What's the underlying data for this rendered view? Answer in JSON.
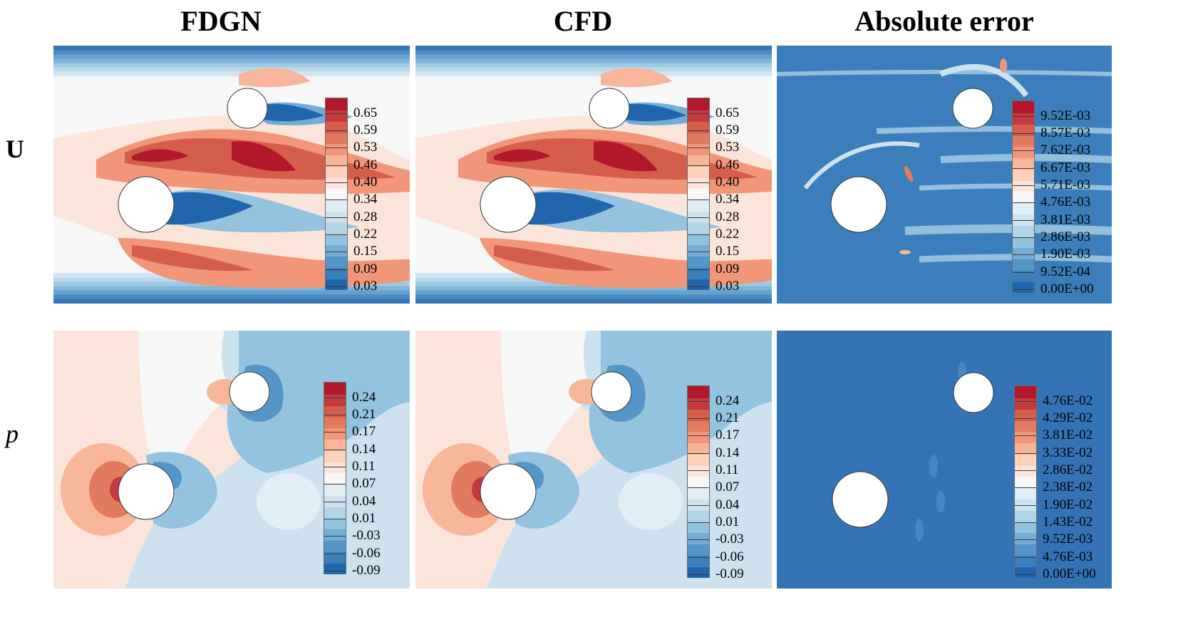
{
  "column_titles": [
    "FDGN",
    "CFD",
    "Absolute error"
  ],
  "row_labels": [
    "U",
    "p"
  ],
  "chart_data": [
    {
      "type": "heatmap",
      "title": "FDGN",
      "field": "U",
      "description": "Velocity magnitude contour around two cylinders (large lower-left, small upper-right) with wakes",
      "colorbar": {
        "colormap": "RdBu_r",
        "ticks": [
          "0.65",
          "0.59",
          "0.53",
          "0.46",
          "0.40",
          "0.34",
          "0.28",
          "0.22",
          "0.15",
          "0.09",
          "0.03"
        ],
        "range": [
          0.0,
          0.71
        ]
      }
    },
    {
      "type": "heatmap",
      "title": "CFD",
      "field": "U",
      "description": "Reference CFD velocity magnitude contour",
      "colorbar": {
        "colormap": "RdBu_r",
        "ticks": [
          "0.65",
          "0.59",
          "0.53",
          "0.46",
          "0.40",
          "0.34",
          "0.28",
          "0.22",
          "0.15",
          "0.09",
          "0.03"
        ],
        "range": [
          0.0,
          0.71
        ]
      }
    },
    {
      "type": "heatmap",
      "title": "Absolute error",
      "field": "U",
      "description": "Absolute error between FDGN and CFD velocity",
      "colorbar": {
        "colormap": "RdBu_r",
        "ticks": [
          "9.52E-03",
          "8.57E-03",
          "7.62E-03",
          "6.67E-03",
          "5.71E-03",
          "4.76E-03",
          "3.81E-03",
          "2.86E-03",
          "1.90E-03",
          "9.52E-04",
          "0.00E+00"
        ],
        "range": [
          0.0,
          0.0105
        ]
      }
    },
    {
      "type": "heatmap",
      "title": "FDGN",
      "field": "p",
      "description": "Pressure contour with stagnation high-pressure upstream of cylinders",
      "colorbar": {
        "colormap": "RdBu_r",
        "ticks": [
          "0.24",
          "0.21",
          "0.17",
          "0.14",
          "0.11",
          "0.07",
          "0.04",
          "0.01",
          "-0.03",
          "-0.06",
          "-0.09"
        ],
        "range": [
          -0.11,
          0.27
        ]
      }
    },
    {
      "type": "heatmap",
      "title": "CFD",
      "field": "p",
      "description": "Reference CFD pressure contour",
      "colorbar": {
        "colormap": "RdBu_r",
        "ticks": [
          "0.24",
          "0.21",
          "0.17",
          "0.14",
          "0.11",
          "0.07",
          "0.04",
          "0.01",
          "-0.03",
          "-0.06",
          "-0.09"
        ],
        "range": [
          -0.11,
          0.27
        ]
      }
    },
    {
      "type": "heatmap",
      "title": "Absolute error",
      "field": "p",
      "description": "Absolute pressure error, nearly uniform low",
      "colorbar": {
        "colormap": "RdBu_r",
        "ticks": [
          "4.76E-02",
          "4.29E-02",
          "3.81E-02",
          "3.33E-02",
          "2.86E-02",
          "2.38E-02",
          "1.90E-02",
          "1.43E-02",
          "9.52E-03",
          "4.76E-03",
          "0.00E+00"
        ],
        "range": [
          0.0,
          0.052
        ]
      }
    }
  ]
}
